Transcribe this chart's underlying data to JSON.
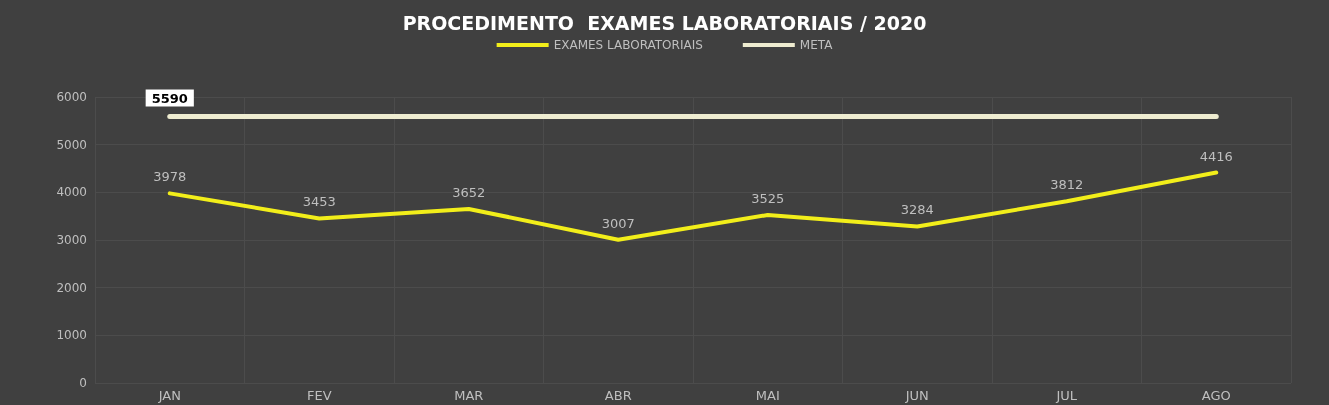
{
  "chart_data": {
    "type": "line",
    "title": "PROCEDIMENTO  EXAMES LABORATORIAIS / 2020",
    "categories": [
      "JAN",
      "FEV",
      "MAR",
      "ABR",
      "MAI",
      "JUN",
      "JUL",
      "AGO"
    ],
    "series": [
      {
        "name": "EXAMES LABORATORIAIS",
        "color": "#f2ee1a",
        "values": [
          3978,
          3453,
          3652,
          3007,
          3525,
          3284,
          3812,
          4416
        ],
        "value_labels": [
          "3978",
          "3453",
          "3652",
          "3007",
          "3525",
          "3284",
          "3812",
          "4416"
        ]
      },
      {
        "name": "META",
        "color": "#eeecd0",
        "values": [
          5590,
          5590,
          5590,
          5590,
          5590,
          5590,
          5590,
          5590
        ],
        "value_labels": [
          "5590",
          null,
          null,
          null,
          null,
          null,
          null,
          null
        ]
      }
    ],
    "ylim": [
      0,
      6000
    ],
    "yticks": [
      0,
      1000,
      2000,
      3000,
      4000,
      5000,
      6000
    ],
    "grid": true,
    "legend": "top",
    "marker": "none",
    "line_style": "solid"
  }
}
